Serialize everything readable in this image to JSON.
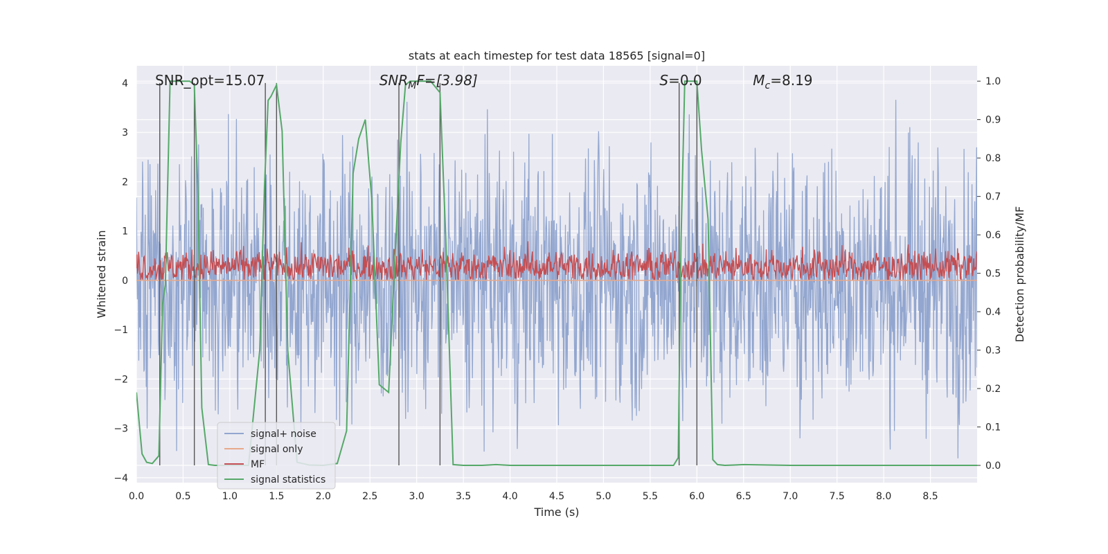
{
  "chart_data": {
    "type": "line",
    "title": "stats at each timestep for test data 18565 [signal=0]",
    "xlabel": "Time (s)",
    "ylabel": "Whitened strain",
    "ylabel_right": "Detection probability/MF",
    "xlim": [
      0.0,
      9.0
    ],
    "ylim": [
      -4.1,
      4.35
    ],
    "ylim_right": [
      -0.045,
      1.04
    ],
    "x_ticks": [
      "0.0",
      "0.5",
      "1.0",
      "1.5",
      "2.0",
      "2.5",
      "3.0",
      "3.5",
      "4.0",
      "4.5",
      "5.0",
      "5.5",
      "6.0",
      "6.5",
      "7.0",
      "7.5",
      "8.0",
      "8.5"
    ],
    "y_ticks": [
      "4",
      "3",
      "2",
      "1",
      "0",
      "−1",
      "−2",
      "−3",
      "−4"
    ],
    "y_ticks_right": [
      "1.0",
      "0.9",
      "0.8",
      "0.7",
      "0.6",
      "0.5",
      "0.4",
      "0.3",
      "0.2",
      "0.1",
      "0.0"
    ],
    "grid": true,
    "legend_position": "lower-left",
    "series": [
      {
        "name": "signal+ noise",
        "color": "#92a6cf",
        "axis": "left",
        "description": "dense noise trace",
        "amplitude_range": [
          -3.6,
          3.7
        ]
      },
      {
        "name": "signal only",
        "color": "#e8a88a",
        "axis": "left",
        "values_constant": 0.0
      },
      {
        "name": "MF",
        "color": "#c44e52",
        "axis": "left",
        "amplitude_range": [
          0.0,
          1.0
        ]
      },
      {
        "name": "signal statistics",
        "color": "#55a868",
        "axis": "right",
        "x": [
          0.0,
          0.06,
          0.11,
          0.17,
          0.24,
          0.28,
          0.31,
          0.36,
          0.42,
          0.5,
          0.57,
          0.62,
          0.66,
          0.7,
          0.77,
          0.84,
          1.0,
          1.2,
          1.32,
          1.37,
          1.41,
          1.44,
          1.5,
          1.56,
          1.62,
          1.72,
          1.85,
          2.0,
          2.15,
          2.25,
          2.32,
          2.38,
          2.45,
          2.52,
          2.6,
          2.7,
          2.77,
          2.83,
          2.88,
          2.93,
          3.0,
          3.15,
          3.25,
          3.31,
          3.39,
          3.5,
          3.7,
          3.85,
          4.0,
          4.5,
          5.0,
          5.5,
          5.75,
          5.8,
          5.83,
          5.87,
          5.95,
          6.0,
          6.05,
          6.12,
          6.17,
          6.22,
          6.3,
          6.4,
          6.5,
          7.0,
          8.0,
          9.0
        ],
        "values": [
          0.19,
          0.03,
          0.008,
          0.005,
          0.025,
          0.42,
          0.47,
          1.0,
          1.0,
          1.0,
          1.0,
          0.99,
          0.7,
          0.15,
          0.002,
          0.0,
          0.0,
          0.0,
          0.3,
          0.72,
          0.95,
          0.96,
          0.99,
          0.87,
          0.3,
          0.008,
          0.001,
          0.0,
          0.005,
          0.09,
          0.76,
          0.85,
          0.9,
          0.69,
          0.21,
          0.19,
          0.55,
          0.84,
          0.99,
          1.0,
          1.0,
          1.0,
          0.97,
          0.6,
          0.002,
          0.0,
          0.0,
          0.002,
          0.0,
          0.0,
          0.0,
          0.0,
          0.0,
          0.02,
          0.58,
          1.0,
          1.0,
          1.0,
          0.82,
          0.64,
          0.015,
          0.002,
          0.0,
          0.001,
          0.002,
          0.0,
          0.0,
          0.0
        ]
      }
    ],
    "vertical_markers_x": [
      0.25,
      0.62,
      1.38,
      1.5,
      2.81,
      3.25,
      5.81,
      6.0
    ],
    "annotations": [
      {
        "text": "SNR_opt=15.07",
        "x": 0.2
      },
      {
        "text": "SNR_MF=[3.98]",
        "x": 2.6
      },
      {
        "text": "S=0.0",
        "x": 5.6
      },
      {
        "text": "M_c=8.19",
        "x": 6.6
      }
    ]
  },
  "annotations_display": {
    "snr_opt": "SNR_opt=15.07",
    "snr_mf_main": "SNR",
    "snr_mf_sub": "M",
    "snr_mf_rest": "F=[3.98]",
    "s_symbol": "S",
    "s_rest": "=0.0",
    "mc_main": "M",
    "mc_sub": "c",
    "mc_rest": "=8.19"
  },
  "colors": {
    "plot_bg": "#eaeaf2",
    "grid": "#ffffff",
    "noise": "#92a6cf",
    "signal_only": "#e8a88a",
    "mf": "#c44e52",
    "stats": "#55a868",
    "marker": "#555555"
  }
}
